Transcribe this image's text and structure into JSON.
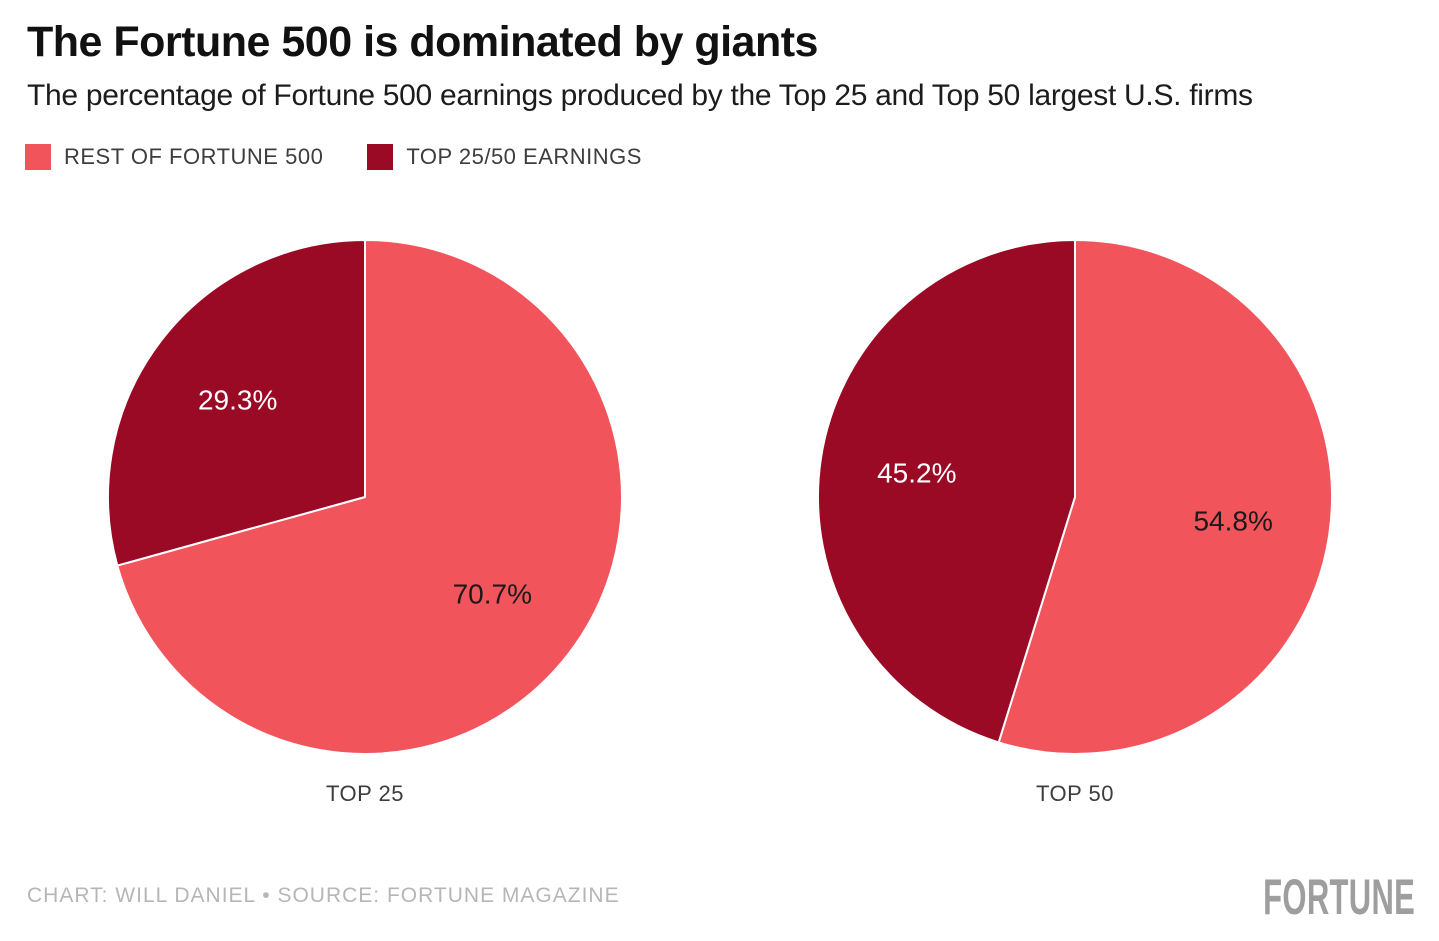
{
  "header": {
    "title": "The Fortune 500 is dominated by giants",
    "subtitle": "The percentage of Fortune 500 earnings produced by the Top 25 and Top 50 largest U.S. firms"
  },
  "colors": {
    "rest_of_fortune_500": "#F2545C",
    "top_earnings": "#9A0A24",
    "label_on_dark": "#ffffff",
    "label_on_light": "#1a1a1a"
  },
  "legend": {
    "items": [
      {
        "label": "REST OF FORTUNE 500",
        "color": "#F2545C"
      },
      {
        "label": "TOP 25/50 EARNINGS",
        "color": "#9A0A24"
      }
    ]
  },
  "chart_data": [
    {
      "type": "pie",
      "title": "TOP 25",
      "start_angle_deg": 0,
      "direction": "clockwise",
      "slices": [
        {
          "name": "REST OF FORTUNE 500",
          "value": 70.7,
          "label": "70.7%",
          "color": "#F2545C",
          "label_color": "#1a1a1a"
        },
        {
          "name": "TOP 25/50 EARNINGS",
          "value": 29.3,
          "label": "29.3%",
          "color": "#9A0A24",
          "label_color": "#ffffff"
        }
      ]
    },
    {
      "type": "pie",
      "title": "TOP 50",
      "start_angle_deg": 0,
      "direction": "clockwise",
      "slices": [
        {
          "name": "REST OF FORTUNE 500",
          "value": 54.8,
          "label": "54.8%",
          "color": "#F2545C",
          "label_color": "#1a1a1a"
        },
        {
          "name": "TOP 25/50 EARNINGS",
          "value": 45.2,
          "label": "45.2%",
          "color": "#9A0A24",
          "label_color": "#ffffff"
        }
      ]
    }
  ],
  "footer": {
    "credit": "CHART: WILL DANIEL • SOURCE: FORTUNE MAGAZINE",
    "logo": "FORTUNE"
  }
}
